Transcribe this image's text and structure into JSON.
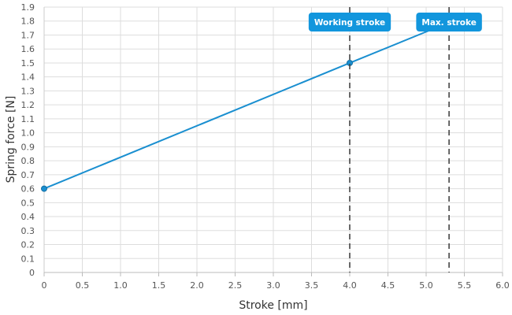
{
  "chart_data": {
    "type": "line",
    "xlabel": "Stroke [mm]",
    "ylabel": "Spring force [N]",
    "xlim": [
      0,
      6.0
    ],
    "ylim": [
      0,
      1.9
    ],
    "x_ticks": [
      "0",
      "0.5",
      "1.0",
      "1.5",
      "2.0",
      "2.5",
      "3.0",
      "3.5",
      "4.0",
      "4.5",
      "5.0",
      "5.5",
      "6.0"
    ],
    "y_ticks": [
      "0",
      "0.1",
      "0.2",
      "0.3",
      "0.4",
      "0.5",
      "0.6",
      "0.7",
      "0.8",
      "0.9",
      "1.0",
      "1.1",
      "1.2",
      "1.3",
      "1.4",
      "1.5",
      "1.6",
      "1.7",
      "1.8",
      "1.9"
    ],
    "grid": true,
    "series": [
      {
        "x": [
          0,
          4.0,
          5.3
        ],
        "y": [
          0.6,
          1.5,
          1.79
        ],
        "markers_at": [
          0,
          4.0
        ],
        "color": "#1a8fd0"
      }
    ],
    "vlines": [
      {
        "x": 4.0,
        "label": "Working stroke",
        "style": "dashed",
        "color": "#444444"
      },
      {
        "x": 5.3,
        "label": "Max. stroke",
        "style": "dashed",
        "color": "#444444"
      }
    ],
    "badge_color": "#1296dd"
  }
}
